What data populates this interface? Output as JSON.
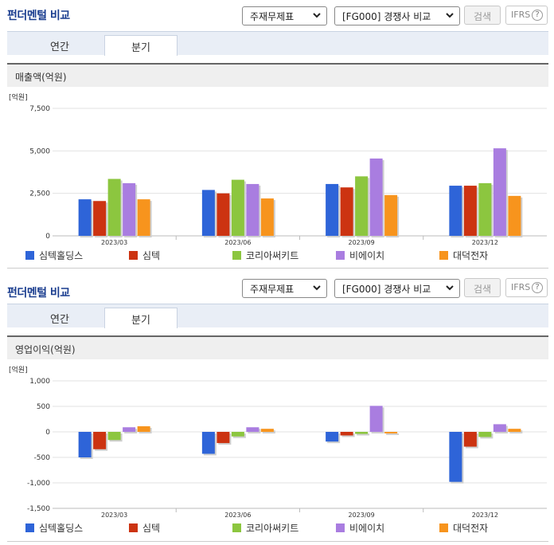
{
  "sections": [
    {
      "title": "펀더멘털 비교",
      "select_type": "주재무제표",
      "select_compare": "[FG000] 경쟁사 비교",
      "search_label": "검색",
      "ifrs_label": "IFRS",
      "help_label": "?",
      "tabs": [
        "연간",
        "분기"
      ],
      "active_tab": 1,
      "metric_label": "매출액(억원)"
    },
    {
      "title": "펀더멘털 비교",
      "select_type": "주재무제표",
      "select_compare": "[FG000] 경쟁사 비교",
      "search_label": "검색",
      "ifrs_label": "IFRS",
      "help_label": "?",
      "tabs": [
        "연간",
        "분기"
      ],
      "active_tab": 1,
      "metric_label": "영업이익(억원)"
    }
  ],
  "chart_data": [
    {
      "type": "bar",
      "unit_label": "[억원]",
      "categories": [
        "2023/03",
        "2023/06",
        "2023/09",
        "2023/12"
      ],
      "ylim": [
        0,
        7500
      ],
      "yticks": [
        0,
        2500,
        5000,
        7500
      ],
      "ytick_labels": [
        "0",
        "2,500",
        "5,000",
        "7,500"
      ],
      "grid": true,
      "legend_position": "bottom",
      "series": [
        {
          "name": "심텍홀딩스",
          "color": "#2e64d8",
          "values": [
            2150,
            2700,
            3050,
            2950
          ]
        },
        {
          "name": "심텍",
          "color": "#cc3311",
          "values": [
            2050,
            2500,
            2850,
            2950
          ]
        },
        {
          "name": "코리아써키트",
          "color": "#8cc63f",
          "values": [
            3350,
            3300,
            3500,
            3100
          ]
        },
        {
          "name": "비에이치",
          "color": "#a97de0",
          "values": [
            3100,
            3050,
            4550,
            5150
          ]
        },
        {
          "name": "대덕전자",
          "color": "#f7941d",
          "values": [
            2150,
            2200,
            2400,
            2350
          ]
        }
      ]
    },
    {
      "type": "bar",
      "unit_label": "[억원]",
      "categories": [
        "2023/03",
        "2023/06",
        "2023/09",
        "2023/12"
      ],
      "ylim": [
        -1500,
        1000
      ],
      "yticks": [
        -1500,
        -1000,
        -500,
        0,
        500,
        1000
      ],
      "ytick_labels": [
        "-1,500",
        "-1,000",
        "-500",
        "0",
        "500",
        "1,000"
      ],
      "grid": true,
      "legend_position": "bottom",
      "series": [
        {
          "name": "심텍홀딩스",
          "color": "#2e64d8",
          "values": [
            -500,
            -430,
            -190,
            -980
          ]
        },
        {
          "name": "심텍",
          "color": "#cc3311",
          "values": [
            -340,
            -220,
            -70,
            -290
          ]
        },
        {
          "name": "코리아써키트",
          "color": "#8cc63f",
          "values": [
            -160,
            -90,
            -40,
            -100
          ]
        },
        {
          "name": "비에이치",
          "color": "#a97de0",
          "values": [
            90,
            90,
            510,
            150
          ]
        },
        {
          "name": "대덕전자",
          "color": "#f7941d",
          "values": [
            110,
            60,
            -30,
            60
          ]
        }
      ]
    }
  ]
}
